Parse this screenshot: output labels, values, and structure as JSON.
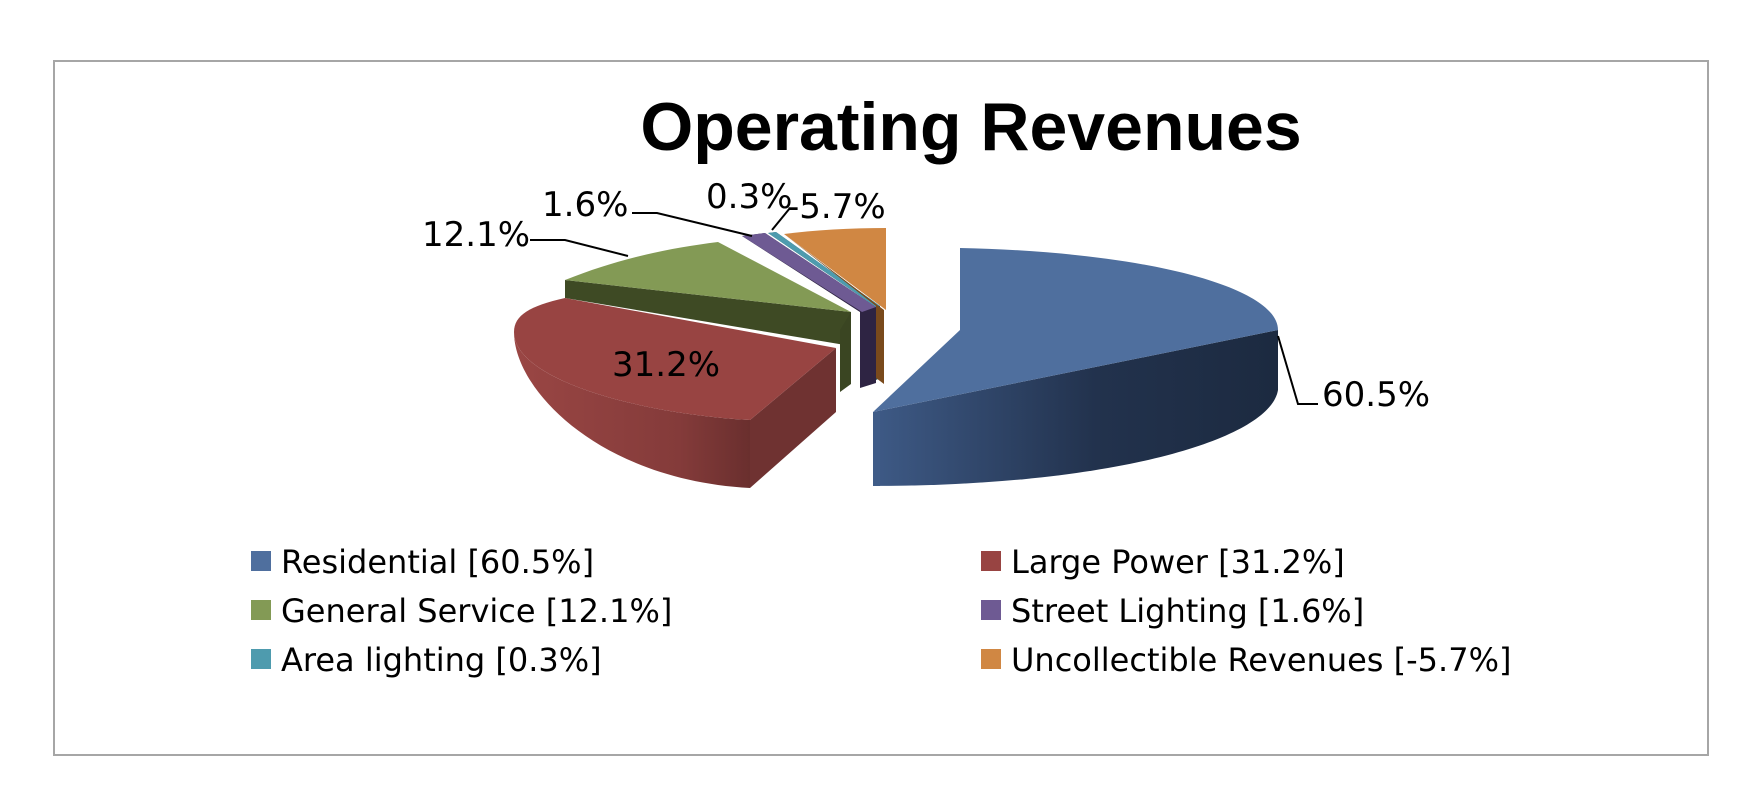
{
  "chart_data": {
    "type": "pie",
    "title": "Operating Revenues",
    "slices": [
      {
        "name": "Residential",
        "value": 60.5,
        "label": "60.5%",
        "legend": "Residential [60.5%]",
        "color": "#4F6F9E",
        "dark": "#1F2D44"
      },
      {
        "name": "Large Power",
        "value": 31.2,
        "label": "31.2%",
        "legend": "Large Power [31.2%]",
        "color": "#984442",
        "dark": "#5E2A2A"
      },
      {
        "name": "General Service",
        "value": 12.1,
        "label": "12.1%",
        "legend": "General Service [12.1%]",
        "color": "#839A55",
        "dark": "#3E4A24"
      },
      {
        "name": "Street Lighting",
        "value": 1.6,
        "label": "1.6%",
        "legend": "Street Lighting [1.6%]",
        "color": "#6E5A93",
        "dark": "#2E2443"
      },
      {
        "name": "Area lighting",
        "value": 0.3,
        "label": "0.3%",
        "legend": "Area lighting [0.3%]",
        "color": "#4E9BAE",
        "dark": "#1F4C57"
      },
      {
        "name": "Uncollectible Revenues",
        "value": -5.7,
        "label": "-5.7%",
        "legend": "Uncollectible Revenues [-5.7%]",
        "color": "#D08743",
        "dark": "#7A4A1C"
      }
    ],
    "legend_position": "bottom",
    "style": "3d-exploded-pie"
  }
}
